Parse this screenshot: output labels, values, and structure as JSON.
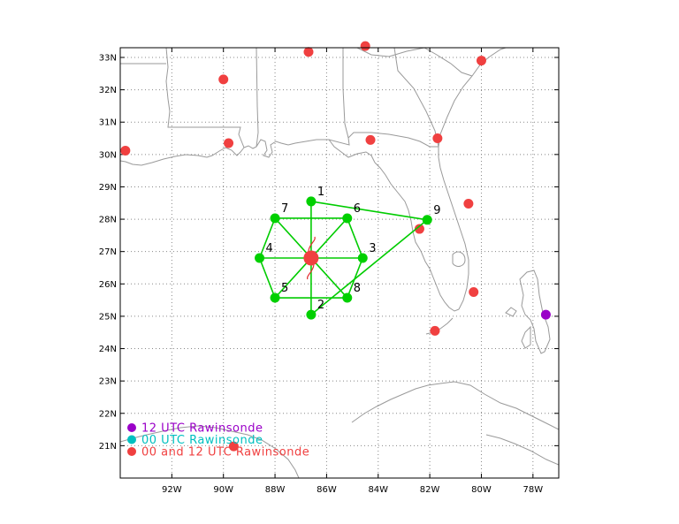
{
  "map": {
    "lon_range": [
      -94.0,
      -77.0
    ],
    "lat_range": [
      20.0,
      33.3
    ],
    "grid": true,
    "grid_style": "dotted",
    "colors": {
      "frame": "#000000",
      "coast": "#9a9a9a",
      "grid": "#888888",
      "both_sonde": "#f04040",
      "sonde_12": "#9a00c8",
      "sonde_00": "#00c0c0",
      "network_node": "#00d000",
      "network_line": "#00cc00",
      "storm_center": "#f04040",
      "storm_ring": "#e03030"
    }
  },
  "axes": {
    "lat_ticks": [
      {
        "value": 33,
        "label": "33N"
      },
      {
        "value": 32,
        "label": "32N"
      },
      {
        "value": 31,
        "label": "31N"
      },
      {
        "value": 30,
        "label": "30N"
      },
      {
        "value": 29,
        "label": "29N"
      },
      {
        "value": 28,
        "label": "28N"
      },
      {
        "value": 27,
        "label": "27N"
      },
      {
        "value": 26,
        "label": "26N"
      },
      {
        "value": 25,
        "label": "25N"
      },
      {
        "value": 24,
        "label": "24N"
      },
      {
        "value": 23,
        "label": "23N"
      },
      {
        "value": 22,
        "label": "22N"
      },
      {
        "value": 21,
        "label": "21N"
      }
    ],
    "lon_ticks": [
      {
        "value": -92,
        "label": "92W"
      },
      {
        "value": -90,
        "label": "90W"
      },
      {
        "value": -88,
        "label": "88W"
      },
      {
        "value": -86,
        "label": "86W"
      },
      {
        "value": -84,
        "label": "84W"
      },
      {
        "value": -82,
        "label": "82W"
      },
      {
        "value": -80,
        "label": "80W"
      },
      {
        "value": -78,
        "label": "78W"
      }
    ]
  },
  "stations_both": [
    {
      "lon": -86.7,
      "lat": 33.17
    },
    {
      "lon": -84.5,
      "lat": 33.35
    },
    {
      "lon": -80.0,
      "lat": 32.9
    },
    {
      "lon": -90.0,
      "lat": 32.32
    },
    {
      "lon": -93.8,
      "lat": 30.12
    },
    {
      "lon": -89.8,
      "lat": 30.35
    },
    {
      "lon": -84.3,
      "lat": 30.45
    },
    {
      "lon": -81.7,
      "lat": 30.5
    },
    {
      "lon": -80.5,
      "lat": 28.48
    },
    {
      "lon": -82.4,
      "lat": 27.7
    },
    {
      "lon": -80.3,
      "lat": 25.75
    },
    {
      "lon": -81.8,
      "lat": 24.55
    },
    {
      "lon": -89.6,
      "lat": 20.98
    }
  ],
  "stations_12": [
    {
      "lon": -77.5,
      "lat": 25.05
    }
  ],
  "storm_center": {
    "lon": -86.6,
    "lat": 26.8
  },
  "network": {
    "nodes": [
      {
        "id": "1",
        "label": "1",
        "lon": -86.6,
        "lat": 28.55
      },
      {
        "id": "2",
        "label": "2",
        "lon": -86.6,
        "lat": 25.05
      },
      {
        "id": "3",
        "label": "3",
        "lon": -84.6,
        "lat": 26.8
      },
      {
        "id": "4",
        "label": "4",
        "lon": -88.6,
        "lat": 26.8
      },
      {
        "id": "5",
        "label": "5",
        "lon": -88.0,
        "lat": 25.57
      },
      {
        "id": "6",
        "label": "6",
        "lon": -85.2,
        "lat": 28.03
      },
      {
        "id": "7",
        "label": "7",
        "lon": -88.0,
        "lat": 28.03
      },
      {
        "id": "8",
        "label": "8",
        "lon": -85.2,
        "lat": 25.57
      },
      {
        "id": "9",
        "label": "9",
        "lon": -82.1,
        "lat": 27.98
      }
    ],
    "links": [
      [
        "7",
        "6"
      ],
      [
        "7",
        "4"
      ],
      [
        "4",
        "5"
      ],
      [
        "7",
        "8"
      ],
      [
        "6",
        "5"
      ],
      [
        "4",
        "3"
      ],
      [
        "1",
        "2"
      ],
      [
        "1",
        "9"
      ],
      [
        "2",
        "9"
      ],
      [
        "5",
        "8"
      ],
      [
        "6",
        "3"
      ],
      [
        "3",
        "8"
      ]
    ]
  },
  "legend": [
    {
      "label": "12 UTC Rawinsonde",
      "color": "#9a00c8"
    },
    {
      "label": "00 UTC Rawinsonde",
      "color": "#00c0c0"
    },
    {
      "label": "00 and 12 UTC Rawinsonde",
      "color": "#f04040"
    }
  ]
}
